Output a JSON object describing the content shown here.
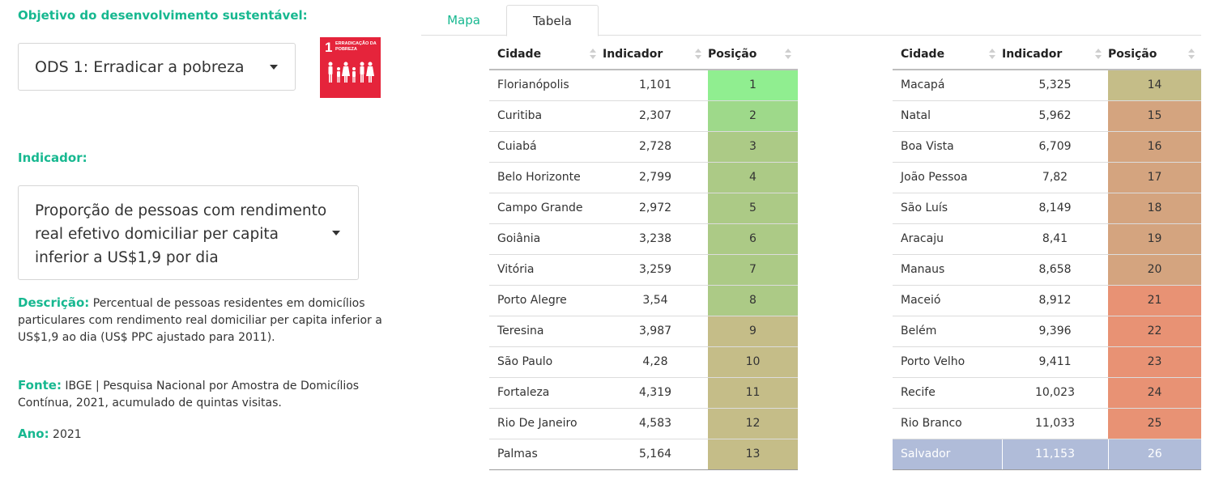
{
  "left": {
    "ods_label": "Objetivo do desenvolvimento sustentável:",
    "ods_value": "ODS 1: Erradicar a pobreza",
    "sdg_badge": {
      "number": "1",
      "text": "ERRADICAÇÃO DA POBREZA",
      "color": "#e5243b"
    },
    "indicador_label": "Indicador:",
    "indicador_value": "Proporção de pessoas com rendimento real efetivo domiciliar per capita inferior a US$1,9 por dia",
    "descricao_label": "Descrição:",
    "descricao_text": "Percentual de pessoas residentes em domicílios particulares com rendimento real domiciliar per capita inferior a US$1,9 ao dia (US$ PPC ajustado para 2011).",
    "fonte_label": "Fonte:",
    "fonte_text": "IBGE | Pesquisa Nacional por Amostra de Domicílios Contínua, 2021, acumulado de quintas visitas.",
    "ano_label": "Ano:",
    "ano_text": "2021"
  },
  "tabs": [
    {
      "label": "Mapa",
      "active": false
    },
    {
      "label": "Tabela",
      "active": true
    }
  ],
  "table": {
    "headers": {
      "city": "Cidade",
      "indicator": "Indicador",
      "position": "Posição"
    },
    "left_rows": [
      {
        "city": "Florianópolis",
        "value": "1,101",
        "pos": "1",
        "color": "#90ee90"
      },
      {
        "city": "Curitiba",
        "value": "2,307",
        "pos": "2",
        "color": "#9ed98a"
      },
      {
        "city": "Cuiabá",
        "value": "2,728",
        "pos": "3",
        "color": "#acca86"
      },
      {
        "city": "Belo Horizonte",
        "value": "2,799",
        "pos": "4",
        "color": "#acca86"
      },
      {
        "city": "Campo Grande",
        "value": "2,972",
        "pos": "5",
        "color": "#acca86"
      },
      {
        "city": "Goiânia",
        "value": "3,238",
        "pos": "6",
        "color": "#acca86"
      },
      {
        "city": "Vitória",
        "value": "3,259",
        "pos": "7",
        "color": "#acca86"
      },
      {
        "city": "Porto Alegre",
        "value": "3,54",
        "pos": "8",
        "color": "#acca86"
      },
      {
        "city": "Teresina",
        "value": "3,987",
        "pos": "9",
        "color": "#c5bd88"
      },
      {
        "city": "São Paulo",
        "value": "4,28",
        "pos": "10",
        "color": "#c5bd88"
      },
      {
        "city": "Fortaleza",
        "value": "4,319",
        "pos": "11",
        "color": "#c5bd88"
      },
      {
        "city": "Rio De Janeiro",
        "value": "4,583",
        "pos": "12",
        "color": "#c5bd88"
      },
      {
        "city": "Palmas",
        "value": "5,164",
        "pos": "13",
        "color": "#c5bd88"
      }
    ],
    "right_rows": [
      {
        "city": "Macapá",
        "value": "5,325",
        "pos": "14",
        "color": "#c5bd88"
      },
      {
        "city": "Natal",
        "value": "5,962",
        "pos": "15",
        "color": "#d4a47f"
      },
      {
        "city": "Boa Vista",
        "value": "6,709",
        "pos": "16",
        "color": "#d4a47f"
      },
      {
        "city": "João Pessoa",
        "value": "7,82",
        "pos": "17",
        "color": "#d4a47f"
      },
      {
        "city": "São Luís",
        "value": "8,149",
        "pos": "18",
        "color": "#d4a47f"
      },
      {
        "city": "Aracaju",
        "value": "8,41",
        "pos": "19",
        "color": "#d4a47f"
      },
      {
        "city": "Manaus",
        "value": "8,658",
        "pos": "20",
        "color": "#d4a47f"
      },
      {
        "city": "Maceió",
        "value": "8,912",
        "pos": "21",
        "color": "#e89274"
      },
      {
        "city": "Belém",
        "value": "9,396",
        "pos": "22",
        "color": "#e89274"
      },
      {
        "city": "Porto Velho",
        "value": "9,411",
        "pos": "23",
        "color": "#e89274"
      },
      {
        "city": "Recife",
        "value": "10,023",
        "pos": "24",
        "color": "#e89274"
      },
      {
        "city": "Rio Branco",
        "value": "11,033",
        "pos": "25",
        "color": "#e89274"
      },
      {
        "city": "Salvador",
        "value": "11,153",
        "pos": "26",
        "color": "#b0bcd9",
        "highlight": true
      }
    ]
  }
}
